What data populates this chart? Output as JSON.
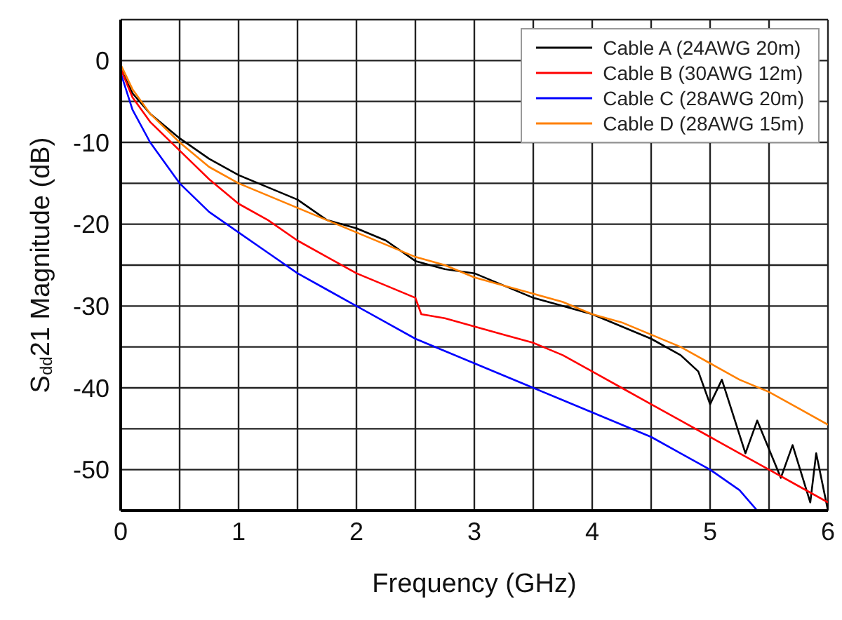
{
  "chart_data": {
    "type": "line",
    "xlabel": "Frequency (GHz)",
    "ylabel": "S$_{dd}$21 Magnitude (dB)",
    "xlim": [
      0,
      6
    ],
    "xticks": [
      0,
      {
        "value": 0.5,
        "label": null
      },
      1,
      {
        "value": 1.5,
        "label": null
      },
      2,
      {
        "value": 2.5,
        "label": null
      },
      3,
      {
        "value": 3.5,
        "label": null
      },
      4,
      {
        "value": 4.5,
        "label": null
      },
      5,
      {
        "value": 5.5,
        "label": null
      },
      6
    ],
    "ylim": [
      -55,
      5
    ],
    "yticks": [
      -50,
      {
        "value": -45,
        "label": null
      },
      -40,
      {
        "value": -35,
        "label": null
      },
      -30,
      {
        "value": -25,
        "label": null
      },
      -20,
      {
        "value": -15,
        "label": null
      },
      -10,
      {
        "value": -5,
        "label": null
      },
      0
    ],
    "grid": true,
    "legend": "top right",
    "marker": "none",
    "line_style": "solid",
    "series": [
      {
        "name": "Cable A (24AWG 20m)",
        "color": "#000000",
        "x": [
          0,
          0.1,
          0.25,
          0.5,
          0.75,
          1,
          1.25,
          1.5,
          1.75,
          2,
          2.25,
          2.5,
          2.75,
          3,
          3.25,
          3.5,
          3.75,
          4,
          4.25,
          4.5,
          4.75,
          4.9,
          5,
          5.1,
          5.3,
          5.4,
          5.6,
          5.7,
          5.85,
          5.9,
          6
        ],
        "values": [
          -1,
          -4,
          -6.5,
          -9.5,
          -12,
          -14,
          -15.5,
          -17,
          -19.5,
          -20.5,
          -22,
          -24.5,
          -25.5,
          -26,
          -27.5,
          -29,
          -30,
          -31,
          -32.5,
          -34,
          -36,
          -38,
          -42,
          -39,
          -48,
          -44,
          -51,
          -47,
          -54,
          -48,
          -55
        ]
      },
      {
        "name": "Cable B (30AWG 12m)",
        "color": "#ff0000",
        "x": [
          0,
          0.1,
          0.25,
          0.5,
          0.75,
          1,
          1.25,
          1.5,
          1.75,
          2,
          2.25,
          2.5,
          2.55,
          2.75,
          3,
          3.25,
          3.5,
          3.75,
          4,
          4.25,
          4.5,
          4.75,
          5,
          5.25,
          5.5,
          5.75,
          6
        ],
        "values": [
          -1,
          -4.5,
          -7.5,
          -11,
          -14.5,
          -17.5,
          -19.5,
          -22,
          -24,
          -26,
          -27.5,
          -29,
          -31,
          -31.5,
          -32.5,
          -33.5,
          -34.5,
          -36,
          -38,
          -40,
          -42,
          -44,
          -46,
          -48,
          -50,
          -52,
          -54
        ]
      },
      {
        "name": "Cable C (28AWG 20m)",
        "color": "#0000ff",
        "x": [
          0,
          0.1,
          0.25,
          0.5,
          0.75,
          1,
          1.25,
          1.5,
          1.75,
          2,
          2.25,
          2.5,
          2.75,
          3,
          3.25,
          3.5,
          3.75,
          4,
          4.25,
          4.5,
          4.75,
          5,
          5.25,
          5.4
        ],
        "values": [
          -1.5,
          -6,
          -10,
          -15,
          -18.5,
          -21,
          -23.5,
          -26,
          -28,
          -30,
          -32,
          -34,
          -35.5,
          -37,
          -38.5,
          -40,
          -41.5,
          -43,
          -44.5,
          -46,
          -48,
          -50,
          -52.5,
          -55
        ]
      },
      {
        "name": "Cable D (28AWG 15m)",
        "color": "#ff8000",
        "x": [
          0,
          0.1,
          0.25,
          0.5,
          0.75,
          1,
          1.25,
          1.5,
          1.75,
          2,
          2.25,
          2.5,
          2.75,
          3,
          3.25,
          3.5,
          3.75,
          4,
          4.25,
          4.5,
          4.75,
          5,
          5.25,
          5.5,
          5.75,
          6
        ],
        "values": [
          -0.5,
          -3.5,
          -6.5,
          -10,
          -13,
          -15,
          -16.5,
          -18,
          -19.5,
          -21,
          -22.5,
          -24,
          -25,
          -26.5,
          -27.5,
          -28.5,
          -29.5,
          -31,
          -32,
          -33.5,
          -35,
          -37,
          -39,
          -40.5,
          -42.5,
          -44.5
        ]
      }
    ]
  }
}
